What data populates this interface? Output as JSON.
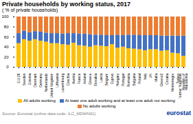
{
  "chart_data": {
    "type": "bar",
    "title": "Private households by working status, 2017",
    "subtitle": "( % of private households)",
    "source": "Source: Eurostat (online data code: ILC_MDWN01)",
    "annotations": [
      {
        "text": "eurostat",
        "color": "#003399"
      }
    ],
    "categories": [
      "EU-28",
      "Sweden",
      "Estonia",
      "Denmark",
      "Germany",
      "Netherlands",
      "United Kingdom",
      "Lithuania",
      "Luxembourg",
      "Czechia",
      "Austria",
      "France",
      "Ireland",
      "Greece",
      "Slovakia",
      "Latvia",
      "Belgium",
      "Cyprus",
      "Hungary",
      "Portugal",
      "Romania",
      "Bulgaria",
      "Poland",
      "Italy",
      "UK",
      "Malta",
      "Greece2",
      "Croatia",
      "Montenegro",
      "Turkey",
      "Former Yugoslav\nRepublic of\nMacedonia"
    ],
    "series": [
      {
        "name": "All adults working",
        "color": "#FFC000",
        "values": [
          47,
          55,
          52,
          55,
          52,
          50,
          47,
          47,
          45,
          44,
          48,
          43,
          42,
          40,
          43,
          42,
          41,
          45,
          38,
          40,
          37,
          36,
          35,
          33,
          35,
          35,
          32,
          33,
          28,
          27,
          22
        ]
      },
      {
        "name": "At least one adult working and at least one adult not working",
        "color": "#4472C4",
        "values": [
          20,
          17,
          17,
          16,
          18,
          18,
          20,
          20,
          21,
          23,
          19,
          23,
          24,
          25,
          21,
          22,
          22,
          18,
          26,
          23,
          27,
          28,
          28,
          30,
          28,
          28,
          30,
          29,
          34,
          35,
          40
        ]
      },
      {
        "name": "No adults working",
        "color": "#ED7D31",
        "values": [
          33,
          28,
          31,
          29,
          30,
          32,
          33,
          33,
          34,
          33,
          33,
          34,
          34,
          35,
          36,
          36,
          37,
          37,
          36,
          37,
          36,
          36,
          37,
          37,
          37,
          37,
          38,
          38,
          38,
          38,
          38
        ]
      }
    ],
    "stacked": true,
    "ylim": [
      0,
      100
    ],
    "yticks": [
      0,
      20,
      40,
      60,
      80,
      100
    ],
    "grid": true,
    "legend": "bottom"
  }
}
